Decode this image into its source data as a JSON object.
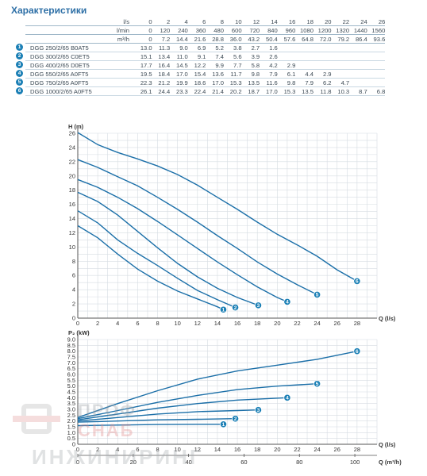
{
  "title": "Характеристики",
  "table": {
    "units": [
      "l/s",
      "l/min",
      "m³/h"
    ],
    "flow": [
      [
        "0",
        "2",
        "4",
        "6",
        "8",
        "10",
        "12",
        "14",
        "16",
        "18",
        "20",
        "22",
        "24",
        "26"
      ],
      [
        "0",
        "120",
        "240",
        "360",
        "480",
        "600",
        "720",
        "840",
        "960",
        "1080",
        "1200",
        "1320",
        "1440",
        "1560"
      ],
      [
        "0",
        "7.2",
        "14.4",
        "21.6",
        "28.8",
        "36.0",
        "43.2",
        "50.4",
        "57.6",
        "64.8",
        "72.0",
        "79.2",
        "86.4",
        "93.6"
      ]
    ],
    "rows": [
      {
        "no": "1",
        "model": "DGG 250/2/65 B0AT5",
        "values": [
          "13.0",
          "11.3",
          "9.0",
          "6.9",
          "5.2",
          "3.8",
          "2.7",
          "1.6",
          "",
          "",
          "",
          "",
          "",
          ""
        ]
      },
      {
        "no": "2",
        "model": "DGG 300/2/65 C0ET5",
        "values": [
          "15.1",
          "13.4",
          "11.0",
          "9.1",
          "7.4",
          "5.6",
          "3.9",
          "2.6",
          "",
          "",
          "",
          "",
          "",
          ""
        ]
      },
      {
        "no": "3",
        "model": "DGG 400/2/65 D0ET5",
        "values": [
          "17.7",
          "16.4",
          "14.5",
          "12.2",
          "9.9",
          "7.7",
          "5.8",
          "4.2",
          "2.9",
          "",
          "",
          "",
          "",
          ""
        ]
      },
      {
        "no": "4",
        "model": "DGG 550/2/65 A0FT5",
        "values": [
          "19.5",
          "18.4",
          "17.0",
          "15.4",
          "13.6",
          "11.7",
          "9.8",
          "7.9",
          "6.1",
          "4.4",
          "2.9",
          "",
          "",
          ""
        ]
      },
      {
        "no": "5",
        "model": "DGG 750/2/65 A0FT5",
        "values": [
          "22.3",
          "21.2",
          "19.9",
          "18.6",
          "17.0",
          "15.3",
          "13.5",
          "11.6",
          "9.8",
          "7.9",
          "6.2",
          "4.7",
          "",
          ""
        ]
      },
      {
        "no": "6",
        "model": "DGG 1000/2/65 A0FT5",
        "values": [
          "26.1",
          "24.4",
          "23.3",
          "22.4",
          "21.4",
          "20.2",
          "18.7",
          "17.0",
          "15.3",
          "13.5",
          "11.8",
          "10.3",
          "8.7",
          "6.8"
        ]
      }
    ]
  },
  "chart_data": [
    {
      "type": "line",
      "ylabel": "H (m)",
      "xlabel": "Q (l/s)",
      "xlim": [
        0,
        30
      ],
      "ylim": [
        0,
        26
      ],
      "x_ticks": [
        0,
        2,
        4,
        6,
        8,
        10,
        12,
        14,
        16,
        18,
        20,
        22,
        24,
        26,
        28
      ],
      "y_ticks": [
        0,
        2,
        4,
        6,
        8,
        10,
        12,
        14,
        16,
        18,
        20,
        22,
        24,
        26
      ],
      "grid": true,
      "series": [
        {
          "name": "1",
          "x": [
            0,
            2,
            4,
            6,
            8,
            10,
            12,
            14,
            14.6
          ],
          "y": [
            13.0,
            11.3,
            9.0,
            6.9,
            5.2,
            3.8,
            2.7,
            1.6,
            1.2
          ]
        },
        {
          "name": "2",
          "x": [
            0,
            2,
            4,
            6,
            8,
            10,
            12,
            14,
            15.8
          ],
          "y": [
            15.1,
            13.4,
            11.0,
            9.1,
            7.4,
            5.6,
            3.9,
            2.6,
            1.5
          ]
        },
        {
          "name": "3",
          "x": [
            0,
            2,
            4,
            6,
            8,
            10,
            12,
            14,
            16,
            18.1
          ],
          "y": [
            17.7,
            16.4,
            14.5,
            12.2,
            9.9,
            7.7,
            5.8,
            4.2,
            2.9,
            1.8
          ]
        },
        {
          "name": "4",
          "x": [
            0,
            2,
            4,
            6,
            8,
            10,
            12,
            14,
            16,
            18,
            20,
            21
          ],
          "y": [
            19.5,
            18.4,
            17.0,
            15.4,
            13.6,
            11.7,
            9.8,
            7.9,
            6.1,
            4.4,
            2.9,
            2.3
          ]
        },
        {
          "name": "5",
          "x": [
            0,
            2,
            4,
            6,
            8,
            10,
            12,
            14,
            16,
            18,
            20,
            22,
            24
          ],
          "y": [
            22.3,
            21.2,
            19.9,
            18.6,
            17.0,
            15.3,
            13.5,
            11.6,
            9.8,
            7.9,
            6.2,
            4.7,
            3.3
          ]
        },
        {
          "name": "6",
          "x": [
            0,
            2,
            4,
            6,
            8,
            10,
            12,
            14,
            16,
            18,
            20,
            22,
            24,
            26,
            28
          ],
          "y": [
            26.1,
            24.4,
            23.3,
            22.4,
            21.4,
            20.2,
            18.7,
            17.0,
            15.3,
            13.5,
            11.8,
            10.3,
            8.7,
            6.8,
            5.2
          ]
        }
      ]
    },
    {
      "type": "line",
      "ylabel": "P₂ (kW)",
      "xlabel": "Q (l/s)",
      "xlabel2": "Q (m³/h)",
      "xlim": [
        0,
        30
      ],
      "ylim": [
        0,
        9
      ],
      "x_ticks": [
        0,
        2,
        4,
        6,
        8,
        10,
        12,
        14,
        16,
        18,
        20,
        22,
        24,
        26,
        28
      ],
      "x2_ticks": [
        0,
        20,
        40,
        60,
        80,
        100
      ],
      "y_ticks": [
        "0",
        "0.5",
        "1.0",
        "1.5",
        "2.0",
        "2.5",
        "3.0",
        "3.5",
        "4.0",
        "4.5",
        "5.0",
        "5.5",
        "6.0",
        "6.5",
        "7.0",
        "7.5",
        "8.0",
        "8.5",
        "9.0"
      ],
      "grid": true,
      "series": [
        {
          "name": "1",
          "x": [
            0,
            4,
            8,
            12,
            14.6
          ],
          "y": [
            1.6,
            1.65,
            1.7,
            1.72,
            1.72
          ]
        },
        {
          "name": "2",
          "x": [
            0,
            4,
            8,
            12,
            15.8
          ],
          "y": [
            1.9,
            2.0,
            2.1,
            2.15,
            2.2
          ]
        },
        {
          "name": "3",
          "x": [
            0,
            4,
            8,
            12,
            16,
            18.1
          ],
          "y": [
            2.0,
            2.3,
            2.6,
            2.8,
            2.9,
            2.95
          ]
        },
        {
          "name": "4",
          "x": [
            0,
            4,
            8,
            12,
            16,
            21
          ],
          "y": [
            2.1,
            2.6,
            3.1,
            3.5,
            3.8,
            4.0
          ]
        },
        {
          "name": "5",
          "x": [
            0,
            4,
            8,
            12,
            16,
            20,
            24
          ],
          "y": [
            2.2,
            2.9,
            3.6,
            4.2,
            4.7,
            5.0,
            5.2
          ]
        },
        {
          "name": "6",
          "x": [
            0,
            4,
            8,
            12,
            16,
            20,
            24,
            28
          ],
          "y": [
            2.3,
            3.5,
            4.6,
            5.6,
            6.3,
            6.8,
            7.3,
            8.0
          ]
        }
      ]
    }
  ],
  "colors": {
    "curve": "#1b6fa8",
    "badge": "#1a7fb5",
    "grid": "#d6dce2",
    "axis": "#555",
    "title": "#2d6fa6"
  },
  "watermark": [
    "ПРОФ",
    "СНАБ",
    "ИНЖИНИРИНГ"
  ]
}
